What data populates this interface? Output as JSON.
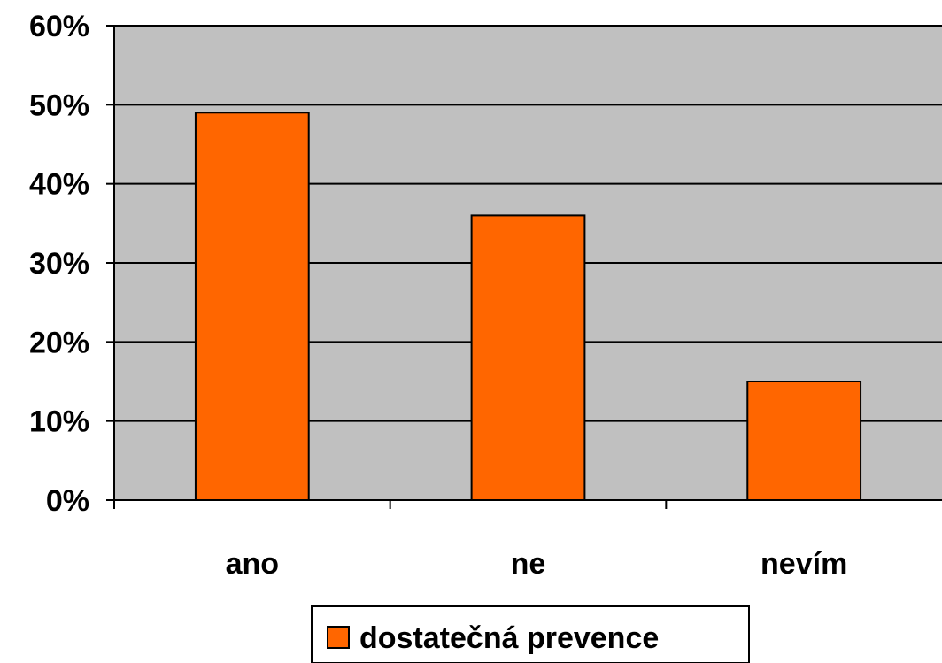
{
  "chart_data": {
    "type": "bar",
    "categories": [
      "ano",
      "ne",
      "nevím"
    ],
    "series": [
      {
        "name": "dostatečná prevence",
        "values": [
          49,
          36,
          15
        ],
        "color": "#ff6600"
      }
    ],
    "yticks": [
      "0%",
      "10%",
      "20%",
      "30%",
      "40%",
      "50%",
      "60%"
    ],
    "ylim": [
      0,
      60
    ],
    "y_unit": "%",
    "grid": true,
    "plot_background": "#c0c0c0",
    "legend_position": "bottom"
  }
}
